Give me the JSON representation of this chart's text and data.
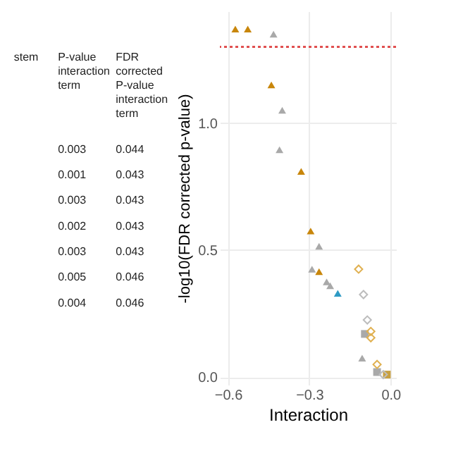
{
  "chart_data": {
    "type": "scatter",
    "xlabel": "Interaction",
    "ylabel": "-log10(FDR corrected p-value)",
    "xlim": [
      -0.63,
      0.02
    ],
    "ylim": [
      -0.03,
      1.44
    ],
    "xticks": [
      -0.6,
      -0.3,
      {
        "value": 0,
        "label": "0.0"
      }
    ],
    "yticks": [
      {
        "value": 0,
        "label": "0.0"
      },
      0.5,
      {
        "value": 1,
        "label": "1.0"
      }
    ],
    "grid": true,
    "ref_lines": [
      {
        "axis": "y",
        "value": 1.3,
        "color": "#e05050",
        "line_style": "dotted"
      }
    ],
    "series": [
      {
        "color": "#c8860b",
        "marker": "triangle",
        "x": [
          -0.573,
          -0.527,
          -0.44,
          -0.33,
          -0.295,
          -0.264
        ],
        "values": [
          1.37,
          1.37,
          1.15,
          0.81,
          0.575,
          0.415
        ]
      },
      {
        "color": "#a9a9a9",
        "marker": "triangle",
        "x": [
          -0.432,
          -0.4,
          -0.41,
          -0.264,
          -0.29,
          -0.236,
          -0.223,
          -0.105
        ],
        "values": [
          1.35,
          1.05,
          0.895,
          0.515,
          0.425,
          0.375,
          0.36,
          0.075
        ]
      },
      {
        "color": "#2e9ac4",
        "marker": "triangle",
        "x": [
          -0.195
        ],
        "values": [
          0.33
        ]
      },
      {
        "color": "#a9a9a9",
        "marker": "square",
        "x": [
          -0.095,
          -0.05
        ],
        "values": [
          0.17,
          0.02
        ]
      },
      {
        "color": "#c8a040",
        "marker": "square",
        "x": [
          -0.014
        ],
        "values": [
          0.01
        ]
      },
      {
        "color": "#e0b050",
        "marker": "diamond",
        "x": [
          -0.118,
          -0.073,
          -0.073,
          -0.05
        ],
        "values": [
          0.425,
          0.18,
          0.155,
          0.05
        ]
      },
      {
        "color": "#bdbdbd",
        "marker": "diamond",
        "x": [
          -0.1,
          -0.086,
          -0.027
        ],
        "values": [
          0.325,
          0.225,
          0.01
        ]
      }
    ],
    "annotations": [
      "stem",
      "P-value interaction term",
      "FDR corrected P-value interaction term",
      "0.003",
      "0.044",
      "0.001",
      "0.043",
      "0.003",
      "0.043",
      "0.002",
      "0.043",
      "0.003",
      "0.043",
      "0.005",
      "0.046",
      "0.004",
      "0.046"
    ]
  }
}
